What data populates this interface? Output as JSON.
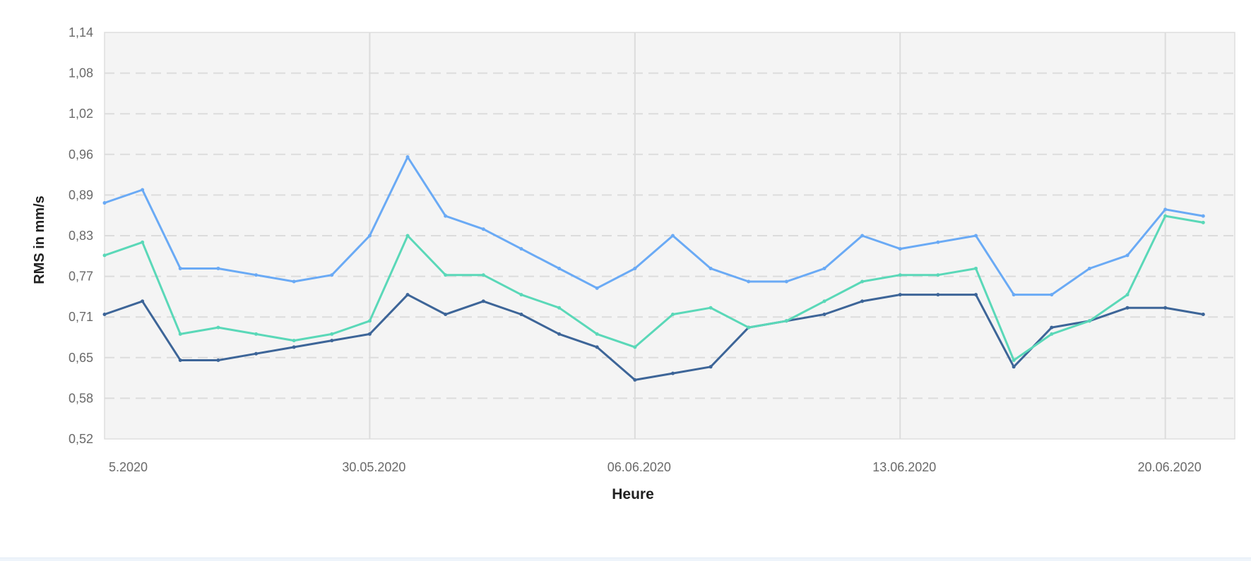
{
  "chart_data": {
    "type": "line",
    "title": "",
    "xlabel": "Heure",
    "ylabel": "RMS in mm/s",
    "ylim": [
      0.52,
      1.14
    ],
    "yticks": [
      "0,52",
      "0,58",
      "0,65",
      "0,71",
      "0,77",
      "0,83",
      "0,89",
      "0,96",
      "1,02",
      "1,08",
      "1,14"
    ],
    "xlim": [
      "2020-05-23",
      "2020-06-21T20:00"
    ],
    "xticks": [
      {
        "date": "2020-05-23",
        "label": "5.2020"
      },
      {
        "date": "2020-05-30",
        "label": "30.05.2020"
      },
      {
        "date": "2020-06-06",
        "label": "06.06.2020"
      },
      {
        "date": "2020-06-13",
        "label": "13.06.2020"
      },
      {
        "date": "2020-06-20",
        "label": "20.06.2020"
      }
    ],
    "grid": true,
    "series": [
      {
        "color": "#3d6598",
        "x": [
          "2020-05-23",
          "2020-05-24",
          "2020-05-25",
          "2020-05-26",
          "2020-05-27",
          "2020-05-28",
          "2020-05-29",
          "2020-05-30",
          "2020-05-31",
          "2020-06-01",
          "2020-06-02",
          "2020-06-03",
          "2020-06-04",
          "2020-06-05",
          "2020-06-06",
          "2020-06-07",
          "2020-06-08",
          "2020-06-09",
          "2020-06-10",
          "2020-06-11",
          "2020-06-12",
          "2020-06-13",
          "2020-06-14",
          "2020-06-15",
          "2020-06-16",
          "2020-06-17",
          "2020-06-18",
          "2020-06-19",
          "2020-06-20",
          "2020-06-21"
        ],
        "values": [
          0.71,
          0.73,
          0.64,
          0.64,
          0.65,
          0.66,
          0.67,
          0.68,
          0.74,
          0.71,
          0.73,
          0.71,
          0.68,
          0.66,
          0.61,
          0.62,
          0.63,
          0.69,
          0.7,
          0.71,
          0.73,
          0.74,
          0.74,
          0.74,
          0.63,
          0.69,
          0.7,
          0.72,
          0.72,
          0.71
        ]
      },
      {
        "color": "#5ad8b8",
        "x": [
          "2020-05-23",
          "2020-05-24",
          "2020-05-25",
          "2020-05-26",
          "2020-05-27",
          "2020-05-28",
          "2020-05-29",
          "2020-05-30",
          "2020-05-31",
          "2020-06-01",
          "2020-06-02",
          "2020-06-03",
          "2020-06-04",
          "2020-06-05",
          "2020-06-06",
          "2020-06-07",
          "2020-06-08",
          "2020-06-09",
          "2020-06-10",
          "2020-06-11",
          "2020-06-12",
          "2020-06-13",
          "2020-06-14",
          "2020-06-15",
          "2020-06-16",
          "2020-06-17",
          "2020-06-18",
          "2020-06-19",
          "2020-06-20",
          "2020-06-21"
        ],
        "values": [
          0.8,
          0.82,
          0.68,
          0.69,
          0.68,
          0.67,
          0.68,
          0.7,
          0.83,
          0.77,
          0.77,
          0.74,
          0.72,
          0.68,
          0.66,
          0.71,
          0.72,
          0.69,
          0.7,
          0.73,
          0.76,
          0.77,
          0.77,
          0.78,
          0.64,
          0.68,
          0.7,
          0.74,
          0.86,
          0.85
        ]
      },
      {
        "color": "#6aaaf5",
        "x": [
          "2020-05-23",
          "2020-05-24",
          "2020-05-25",
          "2020-05-26",
          "2020-05-27",
          "2020-05-28",
          "2020-05-29",
          "2020-05-30",
          "2020-05-31",
          "2020-06-01",
          "2020-06-02",
          "2020-06-03",
          "2020-06-04",
          "2020-06-05",
          "2020-06-06",
          "2020-06-07",
          "2020-06-08",
          "2020-06-09",
          "2020-06-10",
          "2020-06-11",
          "2020-06-12",
          "2020-06-13",
          "2020-06-14",
          "2020-06-15",
          "2020-06-16",
          "2020-06-17",
          "2020-06-18",
          "2020-06-19",
          "2020-06-20",
          "2020-06-21"
        ],
        "values": [
          0.88,
          0.9,
          0.78,
          0.78,
          0.77,
          0.76,
          0.77,
          0.83,
          0.95,
          0.86,
          0.84,
          0.81,
          0.78,
          0.75,
          0.78,
          0.83,
          0.78,
          0.76,
          0.76,
          0.78,
          0.83,
          0.81,
          0.82,
          0.83,
          0.74,
          0.74,
          0.78,
          0.8,
          0.87,
          0.86
        ]
      }
    ]
  }
}
